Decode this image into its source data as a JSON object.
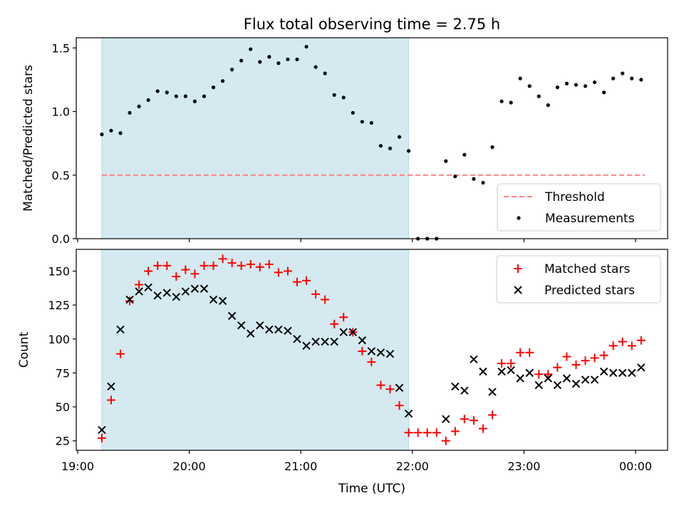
{
  "chart_data": [
    {
      "type": "scatter",
      "title": "Flux total observing time = 2.75 h",
      "ylabel": "Matched/Predicted stars",
      "xlabel": "",
      "ylim": [
        0,
        1.58
      ],
      "yticks": [
        0,
        0.5,
        1.0,
        1.5
      ],
      "ytick_labels": [
        "0.0",
        "0.5",
        "1.0",
        "1.5"
      ],
      "shaded_region": {
        "start": "19:13",
        "end": "21:58",
        "color": "#d4eaf0"
      },
      "threshold": {
        "name": "Threshold",
        "value": 0.5,
        "start": "19:13",
        "end": "00:05",
        "color": "#ff7f7f"
      },
      "legend": {
        "position": "lower-right",
        "entries": [
          "Threshold",
          "Measurements"
        ]
      },
      "series": [
        {
          "name": "Measurements",
          "color": "#000000",
          "x": [
            "19:13",
            "19:18",
            "19:23",
            "19:28",
            "19:33",
            "19:38",
            "19:43",
            "19:48",
            "19:53",
            "19:58",
            "20:03",
            "20:08",
            "20:13",
            "20:18",
            "20:23",
            "20:28",
            "20:33",
            "20:38",
            "20:43",
            "20:48",
            "20:53",
            "20:58",
            "21:03",
            "21:08",
            "21:13",
            "21:18",
            "21:23",
            "21:28",
            "21:33",
            "21:38",
            "21:43",
            "21:48",
            "21:53",
            "21:58",
            "22:03",
            "22:08",
            "22:13",
            "22:18",
            "22:23",
            "22:28",
            "22:33",
            "22:38",
            "22:43",
            "22:48",
            "22:53",
            "22:58",
            "23:03",
            "23:08",
            "23:13",
            "23:18",
            "23:23",
            "23:28",
            "23:33",
            "23:38",
            "23:43",
            "23:48",
            "23:53",
            "23:58",
            "00:03"
          ],
          "y": [
            0.82,
            0.85,
            0.83,
            0.99,
            1.04,
            1.09,
            1.16,
            1.15,
            1.12,
            1.12,
            1.08,
            1.12,
            1.19,
            1.24,
            1.33,
            1.4,
            1.49,
            1.39,
            1.43,
            1.38,
            1.41,
            1.41,
            1.51,
            1.35,
            1.3,
            1.13,
            1.11,
            0.99,
            0.92,
            0.91,
            0.73,
            0.71,
            0.8,
            0.69,
            0.0,
            0.0,
            0.0,
            0.61,
            0.49,
            0.66,
            0.47,
            0.44,
            0.72,
            1.08,
            1.07,
            1.26,
            1.2,
            1.12,
            1.05,
            1.19,
            1.22,
            1.21,
            1.2,
            1.23,
            1.15,
            1.26,
            1.3,
            1.26,
            1.25
          ]
        }
      ]
    },
    {
      "type": "scatter",
      "title": "",
      "ylabel": "Count",
      "xlabel": "Time (UTC)",
      "ylim": [
        18,
        166
      ],
      "yticks": [
        25,
        50,
        75,
        100,
        125,
        150
      ],
      "ytick_labels": [
        "25",
        "50",
        "75",
        "100",
        "125",
        "150"
      ],
      "xticks": [
        "19:00",
        "20:00",
        "21:00",
        "22:00",
        "23:00",
        "00:00"
      ],
      "shaded_region": {
        "start": "19:13",
        "end": "21:58",
        "color": "#d4eaf0"
      },
      "legend": {
        "position": "upper-right",
        "entries": [
          "Matched stars",
          "Predicted stars"
        ]
      },
      "series": [
        {
          "name": "Matched stars",
          "marker": "+",
          "color": "#ff0000",
          "x": [
            "19:13",
            "19:18",
            "19:23",
            "19:28",
            "19:33",
            "19:38",
            "19:43",
            "19:48",
            "19:53",
            "19:58",
            "20:03",
            "20:08",
            "20:13",
            "20:18",
            "20:23",
            "20:28",
            "20:33",
            "20:38",
            "20:43",
            "20:48",
            "20:53",
            "20:58",
            "21:03",
            "21:08",
            "21:13",
            "21:18",
            "21:23",
            "21:28",
            "21:33",
            "21:38",
            "21:43",
            "21:48",
            "21:53",
            "21:58",
            "22:03",
            "22:08",
            "22:13",
            "22:18",
            "22:23",
            "22:28",
            "22:33",
            "22:38",
            "22:43",
            "22:48",
            "22:53",
            "22:58",
            "23:03",
            "23:08",
            "23:13",
            "23:18",
            "23:23",
            "23:28",
            "23:33",
            "23:38",
            "23:43",
            "23:48",
            "23:53",
            "23:58",
            "00:03"
          ],
          "y": [
            27,
            55,
            89,
            128,
            140,
            150,
            154,
            154,
            146,
            151,
            148,
            154,
            154,
            159,
            156,
            154,
            155,
            153,
            155,
            149,
            150,
            142,
            143,
            133,
            129,
            111,
            116,
            105,
            91,
            83,
            66,
            63,
            51,
            31,
            31,
            31,
            31,
            25,
            32,
            41,
            40,
            34,
            44,
            82,
            82,
            90,
            90,
            74,
            74,
            79,
            87,
            81,
            84,
            86,
            88,
            95,
            98,
            95,
            99
          ]
        },
        {
          "name": "Predicted stars",
          "marker": "x",
          "color": "#000000",
          "x": [
            "19:13",
            "19:18",
            "19:23",
            "19:28",
            "19:33",
            "19:38",
            "19:43",
            "19:48",
            "19:53",
            "19:58",
            "20:03",
            "20:08",
            "20:13",
            "20:18",
            "20:23",
            "20:28",
            "20:33",
            "20:38",
            "20:43",
            "20:48",
            "20:53",
            "20:58",
            "21:03",
            "21:08",
            "21:13",
            "21:18",
            "21:23",
            "21:28",
            "21:33",
            "21:38",
            "21:43",
            "21:48",
            "21:53",
            "21:58",
            "22:18",
            "22:23",
            "22:28",
            "22:33",
            "22:38",
            "22:43",
            "22:48",
            "22:53",
            "22:58",
            "23:03",
            "23:08",
            "23:13",
            "23:18",
            "23:23",
            "23:28",
            "23:33",
            "23:38",
            "23:43",
            "23:48",
            "23:53",
            "23:58",
            "00:03"
          ],
          "y": [
            33,
            65,
            107,
            129,
            135,
            138,
            132,
            134,
            131,
            135,
            137,
            137,
            129,
            128,
            117,
            110,
            104,
            110,
            107,
            107,
            106,
            100,
            95,
            98,
            98,
            98,
            105,
            105,
            99,
            91,
            90,
            89,
            64,
            45,
            41,
            65,
            62,
            85,
            76,
            61,
            76,
            77,
            71,
            75,
            66,
            71,
            66,
            71,
            67,
            70,
            70,
            76,
            75,
            75,
            75,
            79
          ]
        }
      ]
    }
  ]
}
